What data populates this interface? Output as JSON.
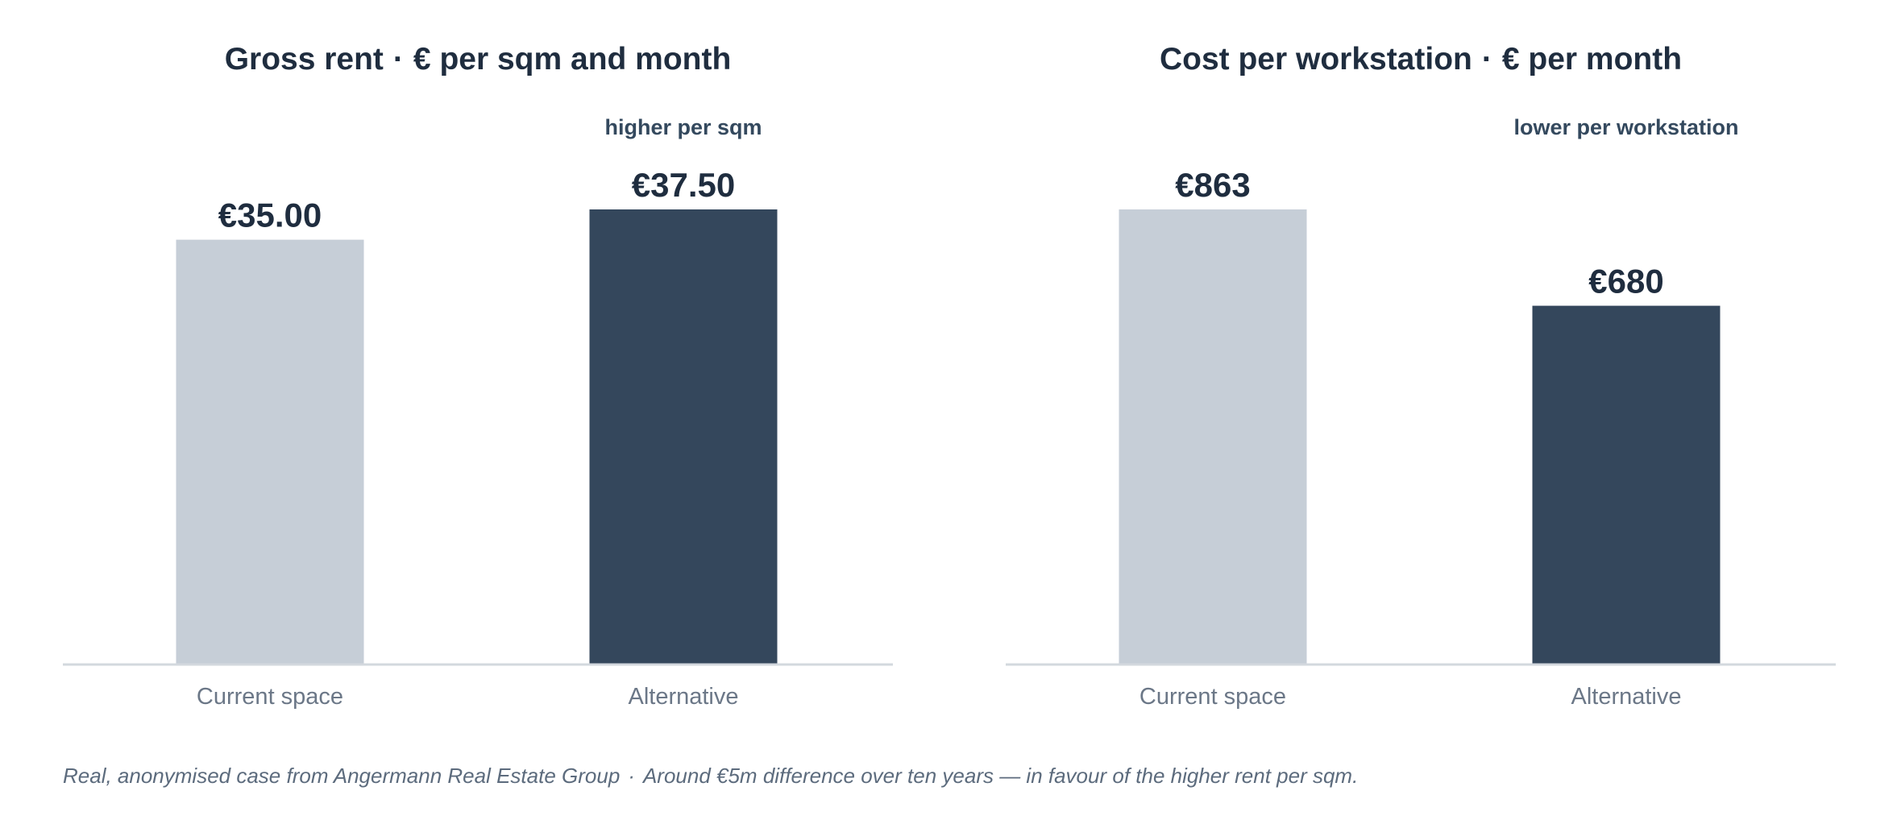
{
  "colors": {
    "current": "#c6ced7",
    "alternative": "#34475c",
    "baseline": "#d3d8de"
  },
  "panels": [
    {
      "title_left": "Gross rent",
      "title_sep": "·",
      "title_right": "€ per sqm and month"
    },
    {
      "title_left": "Cost per workstation",
      "title_sep": "·",
      "title_right": "€ per month"
    }
  ],
  "chart_data": [
    {
      "type": "bar",
      "title": "Gross rent · € per sqm and month",
      "categories": [
        "Current space",
        "Alternative"
      ],
      "values": [
        35.0,
        37.5
      ],
      "value_labels": [
        "€35.00",
        "€37.50"
      ],
      "annotations": [
        "",
        "higher per sqm"
      ],
      "ylim": [
        0,
        37.5
      ],
      "grid": false
    },
    {
      "type": "bar",
      "title": "Cost per workstation · € per month",
      "categories": [
        "Current space",
        "Alternative"
      ],
      "values": [
        863,
        680
      ],
      "value_labels": [
        "€863",
        "€680"
      ],
      "annotations": [
        "",
        "lower per workstation"
      ],
      "ylim": [
        0,
        863
      ],
      "grid": false
    }
  ],
  "footnote": {
    "part1": "Real, anonymised case from Angermann Real Estate Group",
    "sep": "·",
    "part2": "Around €5m difference over ten years — in favour of the higher rent per sqm."
  }
}
